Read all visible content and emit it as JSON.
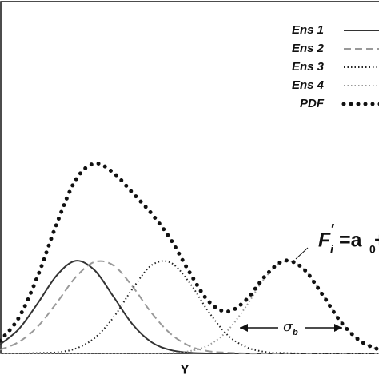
{
  "chart_data": {
    "type": "line",
    "x_label": "Y",
    "x": [
      0,
      0.5,
      1,
      1.5,
      2,
      2.5,
      3,
      3.5,
      4,
      4.5,
      5,
      5.5,
      6,
      6.5,
      7,
      7.5,
      8,
      8.5,
      9,
      9.5,
      10
    ],
    "xlim": [
      0,
      10
    ],
    "ylim": [
      0,
      0.95
    ],
    "series": [
      {
        "name": "Ens 1",
        "color": "#333333",
        "style": "solid",
        "values": [
          0.024,
          0.066,
          0.136,
          0.211,
          0.25,
          0.224,
          0.152,
          0.078,
          0.03,
          0.009,
          0.002,
          0,
          0,
          0,
          0,
          0,
          0,
          0,
          0,
          0,
          0
        ]
      },
      {
        "name": "Ens 2",
        "color": "#999999",
        "style": "dashed",
        "values": [
          0.01,
          0.031,
          0.073,
          0.137,
          0.206,
          0.247,
          0.237,
          0.18,
          0.109,
          0.053,
          0.02,
          0.006,
          0.002,
          0,
          0,
          0,
          0,
          0,
          0,
          0,
          0
        ]
      },
      {
        "name": "Ens 3",
        "color": "#222222",
        "style": "dotted",
        "values": [
          0,
          0,
          0.001,
          0.003,
          0.013,
          0.042,
          0.098,
          0.175,
          0.238,
          0.245,
          0.191,
          0.113,
          0.05,
          0.017,
          0.004,
          0.001,
          0,
          0,
          0,
          0,
          0
        ]
      },
      {
        "name": "Ens 4",
        "color": "#999999",
        "style": "dotted",
        "values": [
          0,
          0,
          0,
          0,
          0,
          0,
          0,
          0,
          0,
          0.001,
          0.006,
          0.022,
          0.061,
          0.128,
          0.205,
          0.249,
          0.229,
          0.16,
          0.084,
          0.034,
          0.01
        ]
      },
      {
        "name": "PDF",
        "color": "#111111",
        "style": "dots",
        "values": [
          0.034,
          0.097,
          0.21,
          0.351,
          0.469,
          0.513,
          0.487,
          0.433,
          0.377,
          0.308,
          0.219,
          0.141,
          0.113,
          0.145,
          0.209,
          0.25,
          0.229,
          0.16,
          0.084,
          0.034,
          0.01
        ]
      }
    ],
    "annotation_parts": [
      "F",
      "i",
      "′",
      "=a",
      "0",
      "+"
    ],
    "sigma_parts": [
      "σ",
      "b"
    ]
  }
}
